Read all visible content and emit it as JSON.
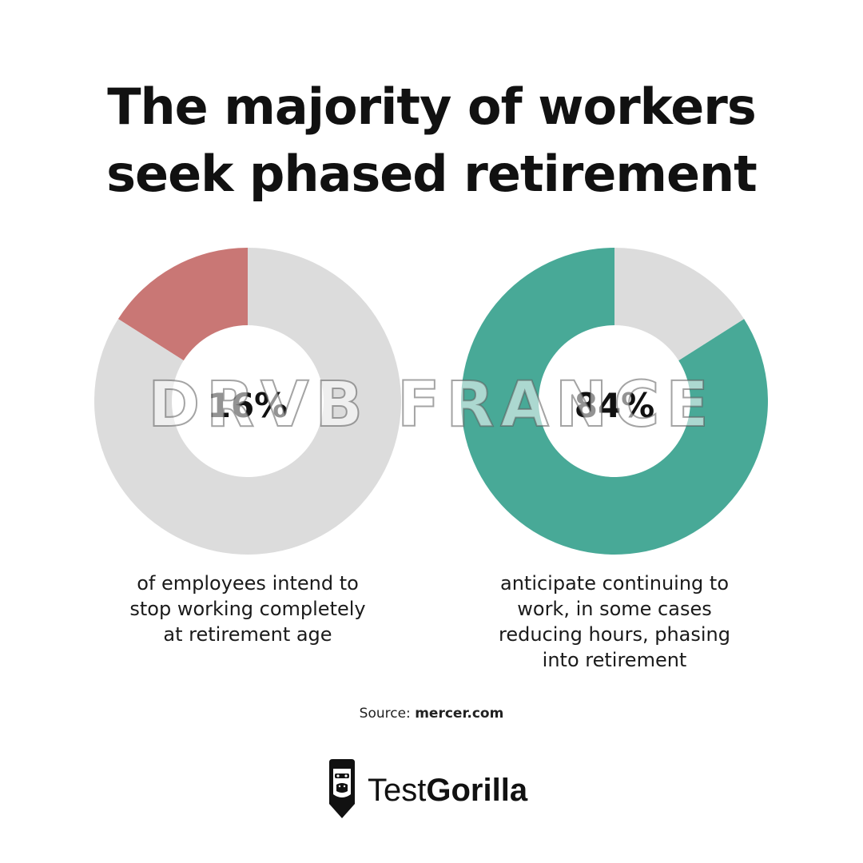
{
  "title": {
    "line1": "The majority of workers",
    "line2": "seek phased retirement"
  },
  "colors": {
    "left_accent": "#c97775",
    "right_accent": "#48a997",
    "track": "#dcdcdc"
  },
  "chart_data": [
    {
      "type": "pie",
      "variant": "donut",
      "values": [
        16,
        84
      ],
      "highlight_index": 0,
      "center_label": "16%",
      "caption": [
        "of employees intend to",
        "stop working completely",
        "at retirement age"
      ]
    },
    {
      "type": "pie",
      "variant": "donut",
      "values": [
        84,
        16
      ],
      "highlight_index": 0,
      "center_label": "84%",
      "caption": [
        "anticipate continuing to",
        "work, in some cases",
        "reducing hours, phasing",
        "into retirement"
      ]
    }
  ],
  "source": {
    "prefix": "Source:",
    "site": "mercer.com"
  },
  "brand": {
    "part1": "Test",
    "part2": "Gorilla",
    "icon": "gorilla-icon"
  },
  "watermark": "DRVB FRANCE"
}
